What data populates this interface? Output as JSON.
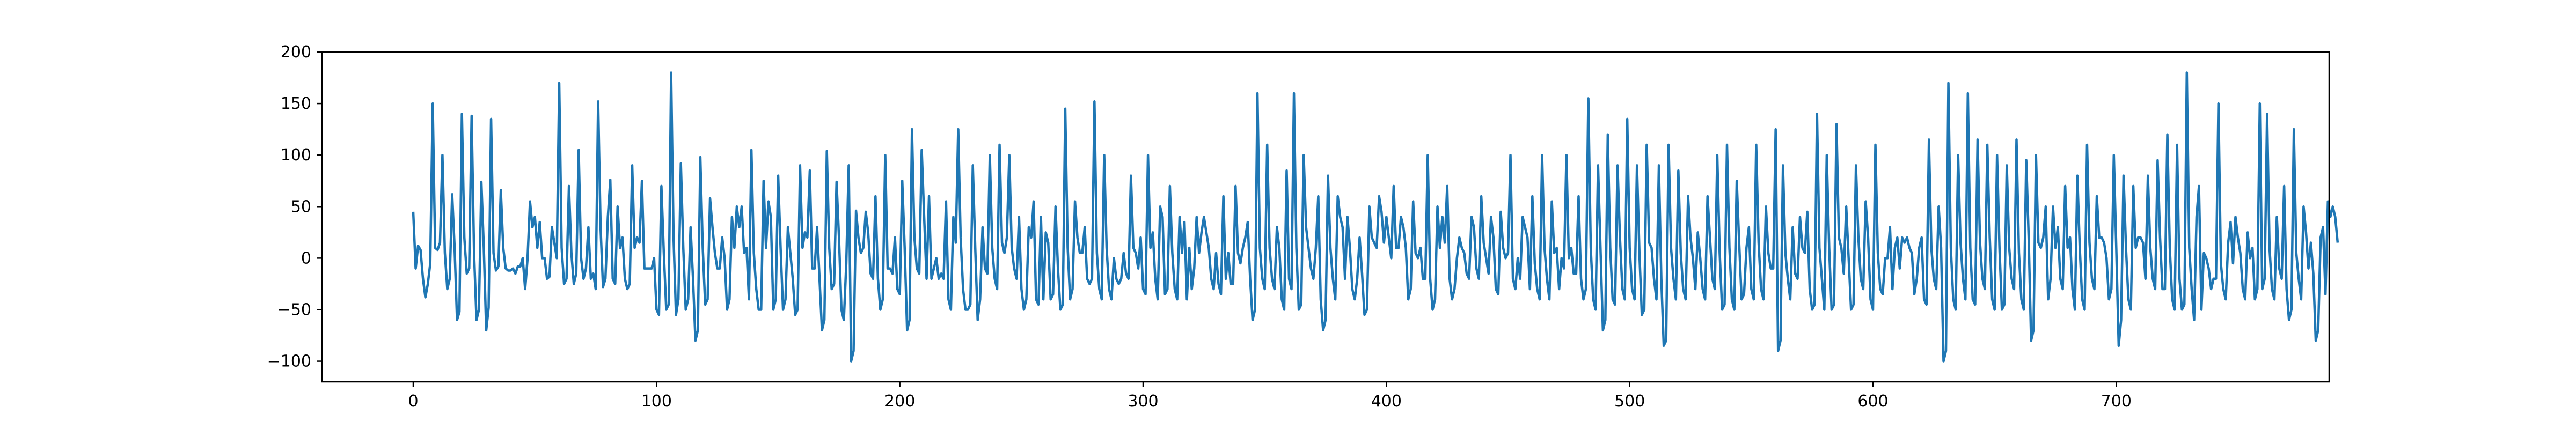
{
  "chart_data": {
    "type": "line",
    "title": "",
    "xlabel": "",
    "ylabel": "",
    "xlim": [
      -37.5,
      787.5
    ],
    "ylim": [
      -120,
      200
    ],
    "grid": false,
    "legend": "none",
    "x_ticks": [
      0,
      100,
      200,
      300,
      400,
      500,
      600,
      700
    ],
    "x_tick_labels": [
      "0",
      "100",
      "200",
      "300",
      "400",
      "500",
      "600",
      "700"
    ],
    "y_ticks": [
      -100,
      -50,
      0,
      50,
      100,
      150,
      200
    ],
    "y_tick_labels": [
      "−100",
      "−50",
      "0",
      "50",
      "100",
      "150",
      "200"
    ],
    "series": [
      {
        "color": "#1f77b4",
        "x_start": 0,
        "x_step": 1,
        "values": [
          45,
          -10,
          12,
          8,
          -20,
          -38,
          -25,
          -5,
          150,
          10,
          8,
          15,
          100,
          5,
          -30,
          -20,
          62,
          10,
          -60,
          -52,
          140,
          20,
          -15,
          -10,
          138,
          5,
          -60,
          -50,
          74,
          10,
          -70,
          -48,
          135,
          5,
          -12,
          -8,
          66,
          10,
          -10,
          -12,
          -12,
          -10,
          -15,
          -8,
          -8,
          0,
          -30,
          0,
          55,
          30,
          40,
          10,
          35,
          0,
          0,
          -20,
          -18,
          30,
          15,
          0,
          170,
          10,
          -25,
          -20,
          70,
          5,
          -25,
          -15,
          105,
          0,
          -20,
          -10,
          30,
          -20,
          -15,
          -30,
          152,
          30,
          -28,
          -20,
          40,
          76,
          -20,
          -25,
          50,
          10,
          20,
          -20,
          -30,
          -25,
          90,
          10,
          20,
          15,
          75,
          -10,
          -10,
          -10,
          -10,
          0,
          -50,
          -55,
          70,
          5,
          -50,
          -45,
          180,
          20,
          -55,
          -40,
          92,
          10,
          -50,
          -40,
          30,
          -20,
          -80,
          -70,
          98,
          10,
          -45,
          -40,
          58,
          30,
          5,
          -10,
          -10,
          20,
          0,
          -50,
          -40,
          40,
          10,
          50,
          30,
          50,
          5,
          10,
          -40,
          105,
          5,
          -30,
          -50,
          -50,
          75,
          10,
          55,
          40,
          -50,
          -40,
          80,
          10,
          -50,
          -40,
          30,
          5,
          -20,
          -55,
          -50,
          90,
          10,
          25,
          20,
          85,
          -10,
          -10,
          30,
          -20,
          -70,
          -60,
          104,
          10,
          -30,
          -25,
          74,
          20,
          -50,
          -60,
          -5,
          90,
          -100,
          -90,
          46,
          20,
          5,
          10,
          45,
          25,
          -15,
          -20,
          60,
          -20,
          -50,
          -40,
          100,
          -10,
          -10,
          -15,
          20,
          -30,
          -35,
          75,
          10,
          -70,
          -60,
          125,
          20,
          -10,
          -15,
          105,
          40,
          -20,
          60,
          -20,
          -10,
          0,
          -20,
          -15,
          -20,
          55,
          -40,
          -50,
          40,
          15,
          125,
          20,
          -30,
          -50,
          -50,
          -45,
          90,
          10,
          -60,
          -40,
          30,
          -10,
          -15,
          100,
          10,
          -20,
          -30,
          110,
          15,
          5,
          20,
          100,
          10,
          -10,
          -20,
          40,
          -30,
          -50,
          -40,
          30,
          20,
          55,
          -40,
          -45,
          40,
          -40,
          25,
          15,
          -40,
          -35,
          50,
          -10,
          -50,
          -45,
          145,
          10,
          -40,
          -30,
          55,
          20,
          5,
          5,
          30,
          -20,
          -25,
          -20,
          152,
          5,
          -30,
          -40,
          100,
          10,
          -30,
          -40,
          0,
          -20,
          -25,
          -20,
          5,
          -15,
          -20,
          80,
          10,
          5,
          -10,
          20,
          -30,
          -35,
          100,
          10,
          25,
          -20,
          -40,
          50,
          40,
          -35,
          -30,
          70,
          5,
          -30,
          -40,
          40,
          5,
          35,
          -40,
          10,
          -30,
          -10,
          40,
          5,
          25,
          40,
          25,
          10,
          -20,
          -30,
          5,
          -25,
          -35,
          60,
          -20,
          5,
          -25,
          -25,
          70,
          5,
          -5,
          10,
          20,
          35,
          -20,
          -60,
          -50,
          160,
          10,
          -20,
          -30,
          110,
          10,
          -20,
          -30,
          30,
          10,
          -40,
          -50,
          85,
          -20,
          -30,
          160,
          10,
          -50,
          -45,
          100,
          30,
          10,
          -10,
          -20,
          10,
          60,
          -40,
          -70,
          -60,
          80,
          10,
          -20,
          -40,
          60,
          40,
          30,
          -20,
          40,
          10,
          -30,
          -40,
          -20,
          20,
          -15,
          -55,
          -50,
          50,
          20,
          15,
          10,
          60,
          45,
          15,
          40,
          20,
          0,
          70,
          10,
          10,
          40,
          30,
          10,
          -40,
          -30,
          55,
          5,
          0,
          10,
          -20,
          -20,
          100,
          -20,
          -50,
          -40,
          50,
          10,
          40,
          15,
          70,
          -20,
          -40,
          -30,
          0,
          20,
          10,
          5,
          -15,
          -20,
          40,
          30,
          -10,
          -20,
          60,
          15,
          0,
          -15,
          40,
          20,
          -30,
          -35,
          45,
          10,
          0,
          5,
          100,
          -20,
          -30,
          0,
          -20,
          40,
          30,
          20,
          -30,
          60,
          -5,
          -30,
          -40,
          100,
          10,
          -20,
          -40,
          55,
          5,
          10,
          -30,
          0,
          -10,
          100,
          0,
          10,
          -15,
          -15,
          60,
          -20,
          -40,
          -30,
          155,
          10,
          -40,
          -50,
          90,
          10,
          -70,
          -60,
          120,
          10,
          -40,
          -45,
          90,
          20,
          -30,
          -40,
          135,
          10,
          -30,
          -40,
          90,
          5,
          -55,
          -50,
          110,
          15,
          10,
          -20,
          -40,
          90,
          -20,
          -85,
          -80,
          110,
          10,
          -20,
          -40,
          85,
          5,
          -30,
          -40,
          60,
          20,
          0,
          -30,
          25,
          0,
          -30,
          -40,
          60,
          20,
          -20,
          -30,
          100,
          5,
          -50,
          -45,
          110,
          10,
          -40,
          -50,
          75,
          15,
          -40,
          -35,
          10,
          30,
          -30,
          -40,
          110,
          15,
          -30,
          -40,
          50,
          5,
          -10,
          -10,
          125,
          -90,
          -80,
          90,
          5,
          -20,
          -40,
          30,
          -15,
          -20,
          40,
          10,
          5,
          45,
          -30,
          -50,
          -45,
          140,
          10,
          -20,
          -50,
          100,
          10,
          -50,
          -45,
          130,
          20,
          10,
          -15,
          50,
          0,
          -50,
          -45,
          90,
          20,
          -20,
          -30,
          55,
          20,
          -40,
          -50,
          110,
          5,
          -30,
          -35,
          0,
          0,
          30,
          -30,
          10,
          20,
          -10,
          20,
          15,
          20,
          10,
          5,
          -35,
          -20,
          10,
          20,
          -40,
          -45,
          115,
          10,
          -20,
          -30,
          50,
          10,
          -100,
          -90,
          170,
          10,
          -40,
          -50,
          100,
          15,
          -20,
          -40,
          160,
          10,
          -40,
          -45,
          115,
          15,
          -20,
          -30,
          110,
          20,
          -40,
          -50,
          100,
          10,
          -50,
          -45,
          90,
          10,
          -20,
          -30,
          115,
          5,
          -40,
          -50,
          95,
          20,
          -80,
          -70,
          100,
          15,
          10,
          20,
          50,
          -40,
          -20,
          50,
          10,
          30,
          -20,
          -30,
          70,
          10,
          20,
          -30,
          -50,
          80,
          10,
          -40,
          -50,
          110,
          15,
          -20,
          -30,
          60,
          20,
          20,
          15,
          0,
          -40,
          -30,
          100,
          10,
          -85,
          -60,
          80,
          10,
          -40,
          -50,
          70,
          10,
          20,
          20,
          15,
          -20,
          80,
          10,
          -20,
          -30,
          95,
          20,
          -30,
          -30,
          120,
          10,
          -40,
          -50,
          110,
          -20,
          -50,
          -45,
          180,
          10,
          -30,
          -60,
          40,
          70,
          -50,
          5,
          0,
          -10,
          -30,
          -20,
          -20,
          150,
          -5,
          -30,
          -40,
          15,
          35,
          -5,
          40,
          20,
          5,
          -30,
          -40,
          25,
          0,
          10,
          -40,
          -30,
          150,
          -30,
          -20,
          140,
          10,
          -30,
          -40,
          40,
          -10,
          -20,
          70,
          -30,
          -60,
          -50,
          125,
          5,
          -20,
          -40,
          50,
          25,
          -10,
          15,
          -15,
          -80,
          -70,
          20,
          30,
          -35,
          55,
          40,
          50,
          40,
          15
        ]
      }
    ]
  }
}
